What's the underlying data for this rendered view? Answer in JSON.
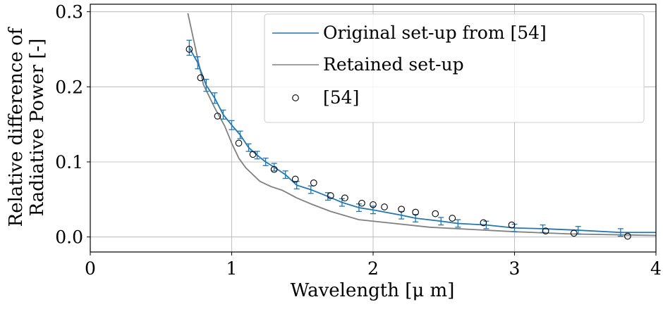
{
  "chart_data": {
    "type": "line",
    "xlabel": "Wavelength  [μ m]",
    "ylabel_lines": [
      "Relative difference of",
      "Radiative  Power [-]"
    ],
    "xlim": [
      0,
      4
    ],
    "ylim": [
      -0.02,
      0.31
    ],
    "xticks": [
      0,
      1,
      2,
      3,
      4
    ],
    "xtick_labels": [
      "0",
      "1",
      "2",
      "3",
      "4"
    ],
    "yticks": [
      0.0,
      0.1,
      0.2,
      0.3
    ],
    "ytick_labels": [
      "0.0",
      "0.1",
      "0.2",
      "0.3"
    ],
    "grid": true,
    "legend_position": "top-right",
    "colors": {
      "original": "#1f77b4",
      "retained": "#808080",
      "reference": "#000000"
    },
    "series": [
      {
        "name": "Original set-up from [54]",
        "style": "line-errorbar",
        "x": [
          0.7,
          0.76,
          0.82,
          0.88,
          0.94,
          1.0,
          1.06,
          1.12,
          1.18,
          1.24,
          1.3,
          1.38,
          1.46,
          1.56,
          1.68,
          1.78,
          1.9,
          2.0,
          2.2,
          2.3,
          2.48,
          2.6,
          2.8,
          3.0,
          3.2,
          3.45,
          3.75,
          4.0
        ],
        "y": [
          0.252,
          0.232,
          0.202,
          0.185,
          0.163,
          0.149,
          0.136,
          0.119,
          0.109,
          0.1,
          0.093,
          0.083,
          0.069,
          0.063,
          0.054,
          0.046,
          0.039,
          0.036,
          0.029,
          0.025,
          0.021,
          0.018,
          0.016,
          0.012,
          0.011,
          0.009,
          0.006,
          0.006
        ],
        "err": [
          0.01,
          0.008,
          0.008,
          0.007,
          0.006,
          0.006,
          0.005,
          0.005,
          0.005,
          0.005,
          0.005,
          0.005,
          0.005,
          0.005,
          0.005,
          0.005,
          0.005,
          0.005,
          0.005,
          0.005,
          0.005,
          0.005,
          0.005,
          0.005,
          0.005,
          0.005,
          0.005,
          0
        ]
      },
      {
        "name": "Retained set-up",
        "style": "line",
        "x": [
          0.69,
          0.75,
          0.8,
          0.88,
          0.95,
          1.0,
          1.05,
          1.1,
          1.2,
          1.28,
          1.36,
          1.46,
          1.56,
          1.7,
          1.9,
          2.1,
          2.4,
          2.7,
          3.0,
          3.4,
          4.0
        ],
        "y": [
          0.298,
          0.246,
          0.203,
          0.172,
          0.148,
          0.125,
          0.105,
          0.092,
          0.074,
          0.067,
          0.062,
          0.052,
          0.044,
          0.034,
          0.023,
          0.019,
          0.013,
          0.01,
          0.007,
          0.004,
          0.002
        ]
      },
      {
        "name": "[54]",
        "style": "markers",
        "x": [
          0.7,
          0.78,
          0.9,
          1.05,
          1.15,
          1.3,
          1.45,
          1.58,
          1.7,
          1.8,
          1.92,
          2.0,
          2.08,
          2.2,
          2.3,
          2.44,
          2.56,
          2.78,
          2.98,
          3.22,
          3.42,
          3.8
        ],
        "y": [
          0.25,
          0.212,
          0.161,
          0.125,
          0.11,
          0.09,
          0.077,
          0.072,
          0.055,
          0.052,
          0.045,
          0.043,
          0.04,
          0.037,
          0.033,
          0.031,
          0.025,
          0.019,
          0.016,
          0.008,
          0.005,
          0.001
        ]
      }
    ]
  }
}
